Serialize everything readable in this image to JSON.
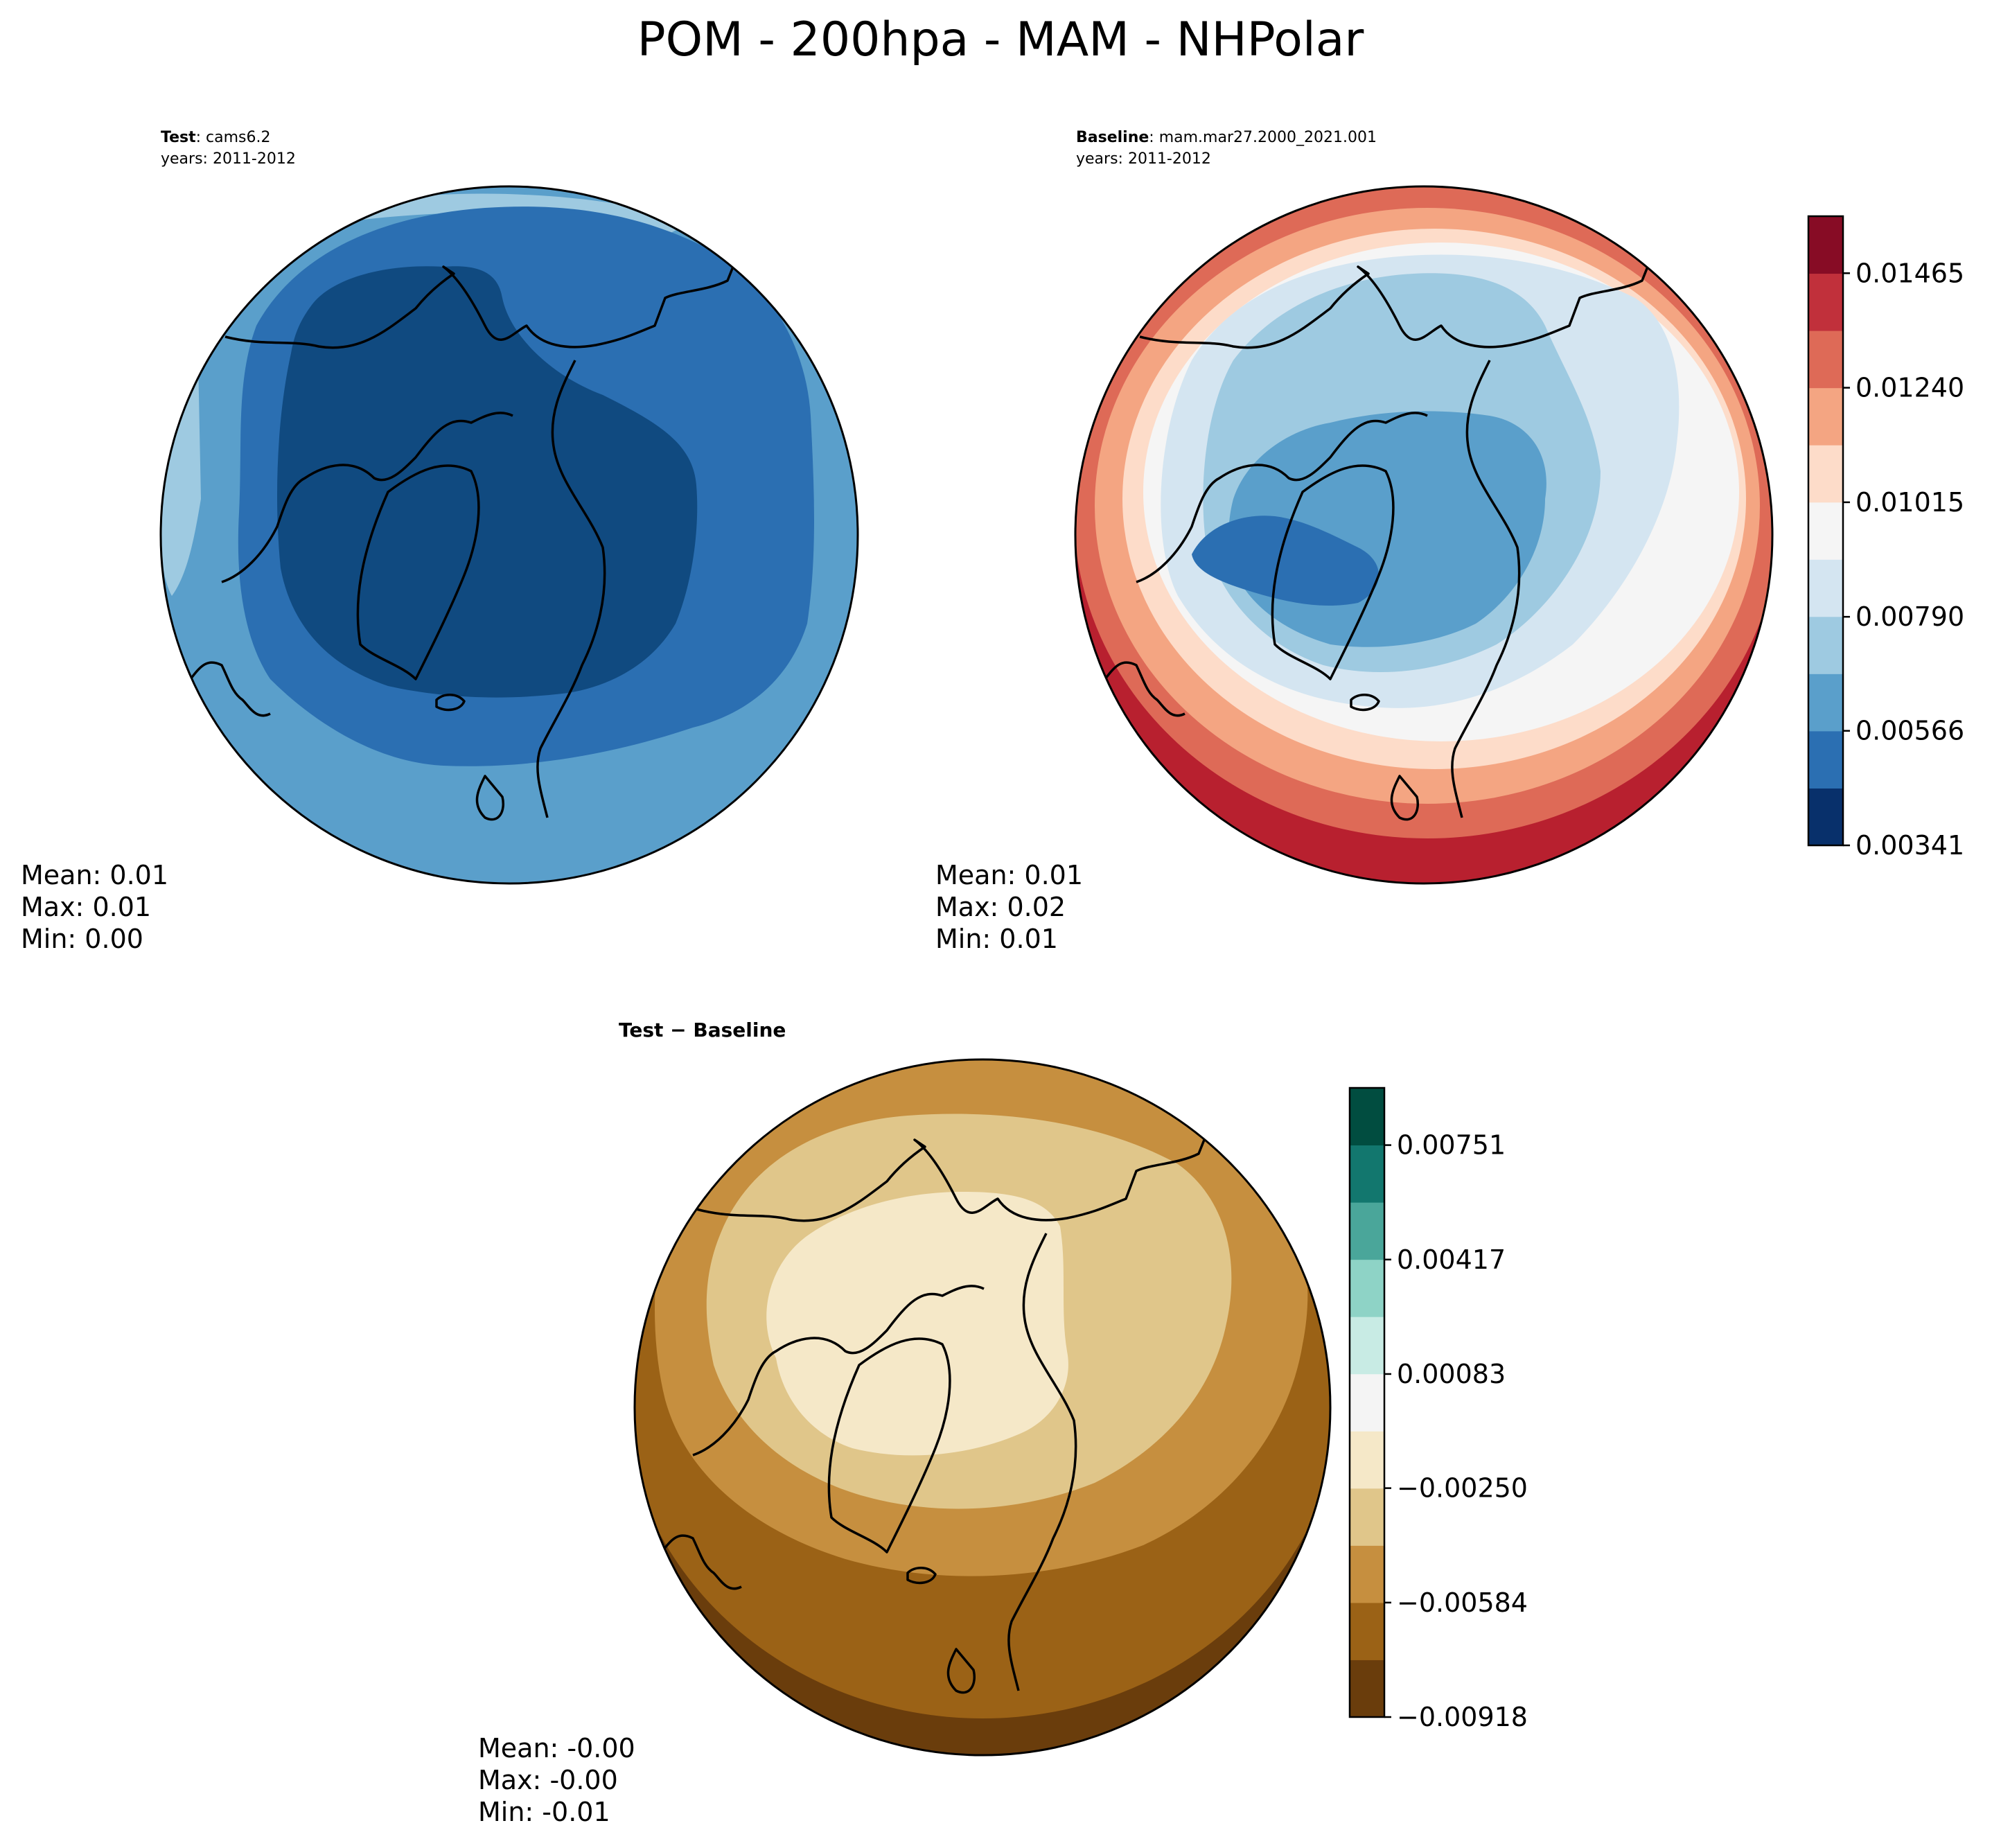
{
  "figure": {
    "title": "POM - 200hpa - MAM - NHPolar"
  },
  "chart_data": [
    {
      "type": "heatmap",
      "projection": "north-polar-stereographic",
      "label_bold": "Test",
      "label_rest": ": cams6.2",
      "years": "years: 2011-2012",
      "stats": [
        "Mean:  0.01",
        "Max:  0.01",
        "Min:  0.00"
      ],
      "levels": [
        0.00341,
        0.00454,
        0.00566,
        0.00678,
        0.0079,
        0.00903,
        0.01015,
        0.01128,
        0.0124,
        0.01352,
        0.01465,
        0.01577
      ],
      "colorbar": "shared-top"
    },
    {
      "type": "heatmap",
      "projection": "north-polar-stereographic",
      "label_bold": "Baseline",
      "label_rest": ": mam.mar27.2000_2021.001",
      "years": "years: 2011-2012",
      "stats": [
        "Mean:  0.01",
        "Max:  0.02",
        "Min:  0.01"
      ],
      "levels": [
        0.00341,
        0.00454,
        0.00566,
        0.00678,
        0.0079,
        0.00903,
        0.01015,
        0.01128,
        0.0124,
        0.01352,
        0.01465,
        0.01577
      ],
      "colorbar": {
        "colors": [
          "#08306b",
          "#2b6fb2",
          "#5a9fcb",
          "#9ecae1",
          "#d4e5f1",
          "#f5f5f5",
          "#fddcc9",
          "#f4a582",
          "#de6a57",
          "#c1303b",
          "#870c25"
        ],
        "tick_labels": [
          "0.00341",
          "0.00566",
          "0.00790",
          "0.01015",
          "0.01240",
          "0.01465"
        ],
        "tick_values": [
          0.00341,
          0.00566,
          0.0079,
          0.01015,
          0.0124,
          0.01465
        ],
        "range": [
          0.00341,
          0.01577
        ]
      }
    },
    {
      "type": "heatmap",
      "projection": "north-polar-stereographic",
      "label_bold": "Test − Baseline",
      "stats": [
        "Mean: -0.00",
        "Max: -0.00",
        "Min: -0.01"
      ],
      "levels": [
        -0.00918,
        -0.00751,
        -0.00584,
        -0.00417,
        -0.0025,
        -0.00083,
        0.00083,
        0.0025,
        0.00417,
        0.00584,
        0.00751,
        0.00918
      ],
      "colorbar": {
        "colors": [
          "#6a3d0c",
          "#9b6216",
          "#c68f3f",
          "#e0c68a",
          "#f5e8c8",
          "#f4f4f4",
          "#c8ebe4",
          "#8ed3c6",
          "#4aa69a",
          "#12776e",
          "#014d40"
        ],
        "tick_labels": [
          "−0.00918",
          "−0.00584",
          "−0.00250",
          "0.00083",
          "0.00417",
          "0.00751"
        ],
        "tick_values": [
          -0.00918,
          -0.00584,
          -0.0025,
          0.00083,
          0.00417,
          0.00751
        ],
        "range": [
          -0.00918,
          0.00918
        ]
      }
    }
  ],
  "colors": {
    "test_fields": [
      "#5a9fcb",
      "#2b6fb2",
      "#104a80"
    ],
    "baseline_fields": [
      "#b8202f",
      "#de6a57",
      "#f4a582",
      "#fddcc9",
      "#f5f5f5",
      "#d4e5f1",
      "#9ecae1",
      "#5a9fcb",
      "#2b6fb2"
    ],
    "diff_fields": [
      "#6a3d0c",
      "#9b6216",
      "#c68f3f",
      "#e0c68a",
      "#f5e8c8"
    ]
  }
}
